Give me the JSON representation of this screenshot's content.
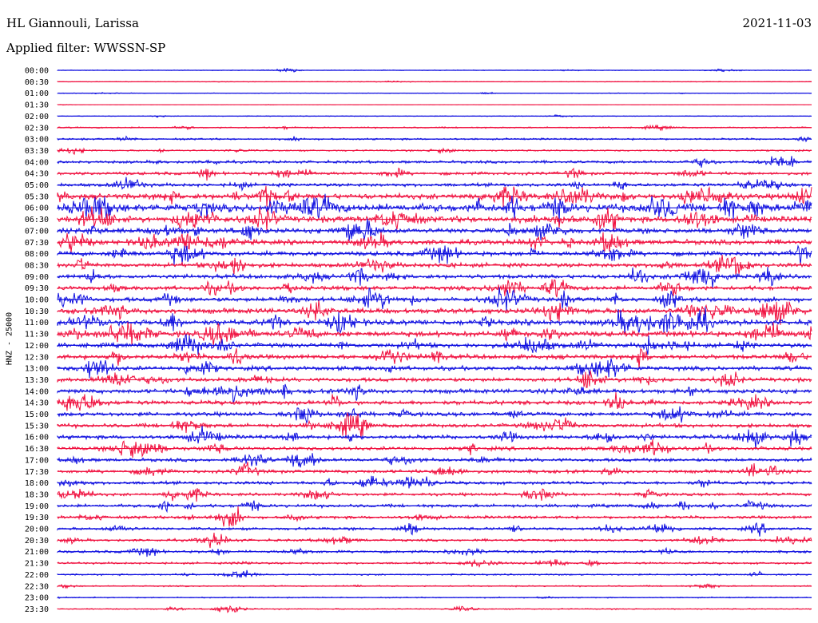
{
  "header": {
    "station": "HL Giannouli, Larissa",
    "date": "2021-11-03",
    "filter": "Applied filter: WWSSN-SP"
  },
  "colors": {
    "even": "#1010e0",
    "odd": "#f0103f"
  },
  "chart_data": {
    "type": "line",
    "title": "HL Giannouli, Larissa",
    "subtitle": "Applied filter: WWSSN-SP",
    "ylabel": "HNZ - 25000",
    "xlabel": "",
    "row_labels": [
      "00:00",
      "00:30",
      "01:00",
      "01:30",
      "02:00",
      "02:30",
      "03:00",
      "03:30",
      "04:00",
      "04:30",
      "05:00",
      "05:30",
      "06:00",
      "06:30",
      "07:00",
      "07:30",
      "08:00",
      "08:30",
      "09:00",
      "09:30",
      "10:00",
      "10:30",
      "11:00",
      "11:30",
      "12:00",
      "12:30",
      "13:00",
      "13:30",
      "14:00",
      "14:30",
      "15:00",
      "15:30",
      "16:00",
      "16:30",
      "17:00",
      "17:30",
      "18:00",
      "18:30",
      "19:00",
      "19:30",
      "20:00",
      "20:30",
      "21:00",
      "21:30",
      "22:00",
      "22:30",
      "23:00",
      "23:30"
    ],
    "noise_level": [
      0.3,
      0.3,
      0.3,
      0.1,
      0.3,
      0.6,
      0.8,
      0.7,
      1.2,
      1.4,
      1.5,
      2.4,
      3.4,
      2.6,
      2.2,
      2.2,
      2.0,
      1.9,
      1.9,
      1.9,
      2.0,
      2.3,
      2.5,
      2.4,
      2.0,
      2.0,
      1.9,
      1.8,
      1.9,
      1.9,
      1.8,
      1.7,
      1.7,
      1.6,
      1.5,
      1.5,
      1.4,
      1.3,
      1.4,
      1.3,
      1.2,
      1.1,
      1.1,
      0.9,
      0.7,
      0.6,
      0.5,
      0.5
    ],
    "grid": false,
    "legend": "none"
  }
}
